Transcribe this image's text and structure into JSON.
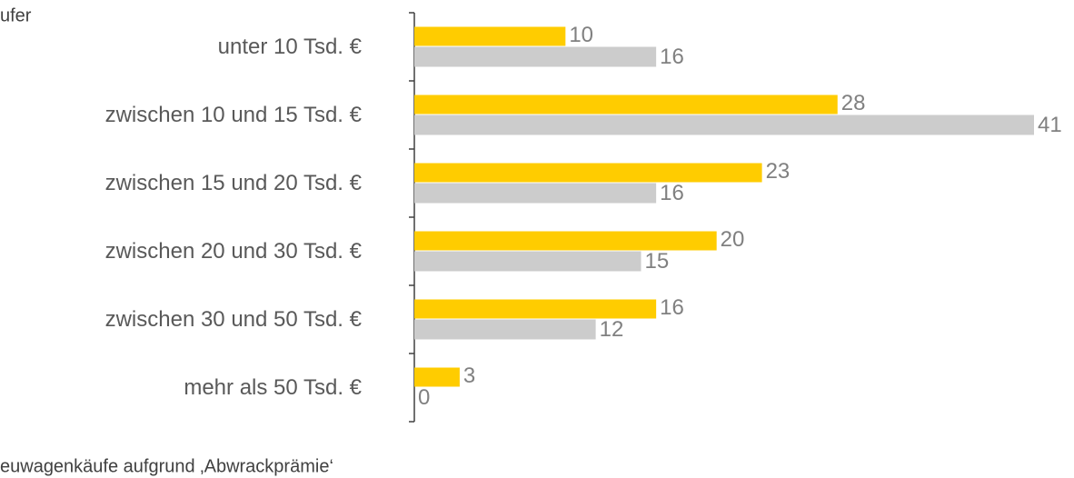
{
  "chart_data": {
    "type": "bar",
    "orientation": "horizontal",
    "categories": [
      "unter 10 Tsd. €",
      "zwischen 10 und 15 Tsd. €",
      "zwischen 15 und 20 Tsd. €",
      "zwischen 20 und 30 Tsd. €",
      "zwischen 30 und 50 Tsd. €",
      "mehr als 50 Tsd. €"
    ],
    "series": [
      {
        "name": "euwagenkäufe aufgrund ‚Abwrackprämie‘",
        "color": "#ffcc00",
        "values": [
          10,
          28,
          23,
          20,
          16,
          3
        ]
      },
      {
        "name": "ufer",
        "color": "#cccccc",
        "values": [
          16,
          41,
          16,
          15,
          12,
          0
        ]
      }
    ],
    "xlim": [
      0,
      41
    ]
  }
}
